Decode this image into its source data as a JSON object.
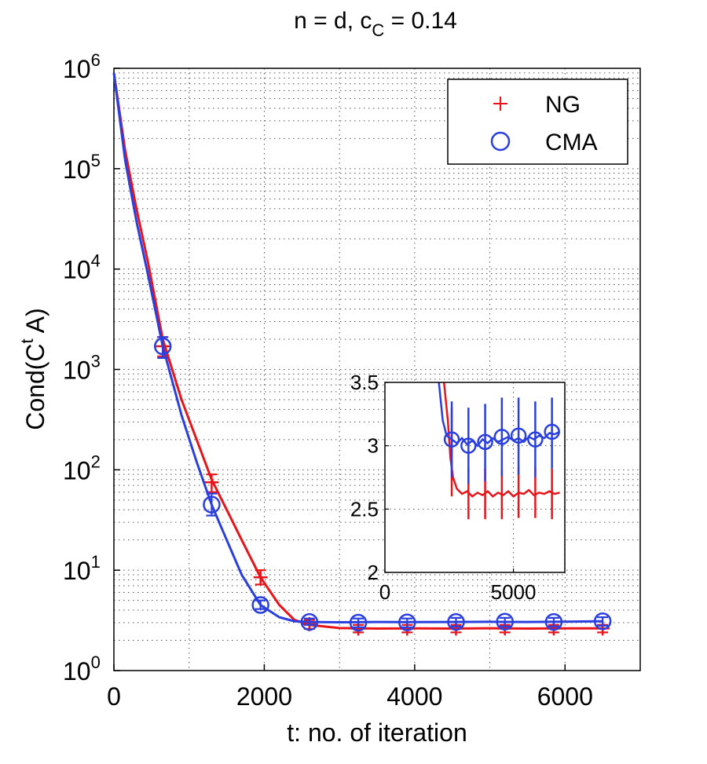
{
  "chart_data": [
    {
      "type": "line",
      "title": {
        "main": "n = d, c",
        "sub": "C",
        "tail": " = 0.14"
      },
      "xlabel": "t: no. of iteration",
      "ylabel": {
        "pre": "Cond(C",
        "sup": "t",
        "post": " A)"
      },
      "yscale": "log",
      "xlim": [
        0,
        7000
      ],
      "ylim": [
        1,
        1000000
      ],
      "xticks": [
        0,
        2000,
        4000,
        6000
      ],
      "yticks": [
        {
          "value": 1,
          "base": "10",
          "exp": "0"
        },
        {
          "value": 10,
          "base": "10",
          "exp": "1"
        },
        {
          "value": 100,
          "base": "10",
          "exp": "2"
        },
        {
          "value": 1000,
          "base": "10",
          "exp": "3"
        },
        {
          "value": 10000,
          "base": "10",
          "exp": "4"
        },
        {
          "value": 100000,
          "base": "10",
          "exp": "5"
        },
        {
          "value": 1000000,
          "base": "10",
          "exp": "6"
        }
      ],
      "grid": true,
      "legend": "top-right",
      "series": [
        {
          "name": "NG",
          "color": "#e8141a",
          "marker": "plus",
          "line": [
            [
              0,
              900000
            ],
            [
              150,
              150000
            ],
            [
              300,
              40000
            ],
            [
              450,
              12000
            ],
            [
              650,
              2000
            ],
            [
              900,
              500
            ],
            [
              1100,
              200
            ],
            [
              1300,
              80
            ],
            [
              1500,
              40
            ],
            [
              1700,
              20
            ],
            [
              1950,
              8.5
            ],
            [
              2200,
              4.5
            ],
            [
              2400,
              3.2
            ],
            [
              2600,
              2.85
            ],
            [
              3000,
              2.65
            ],
            [
              3500,
              2.62
            ],
            [
              4000,
              2.63
            ],
            [
              4500,
              2.62
            ],
            [
              5000,
              2.64
            ],
            [
              5500,
              2.62
            ],
            [
              6000,
              2.63
            ],
            [
              6500,
              2.63
            ]
          ],
          "markers": [
            {
              "x": 650,
              "y": 1700,
              "lo": 1350,
              "hi": 2100
            },
            {
              "x": 1300,
              "y": 75,
              "lo": 60,
              "hi": 90
            },
            {
              "x": 1950,
              "y": 8.5,
              "lo": 7.2,
              "hi": 10
            },
            {
              "x": 2600,
              "y": 2.9,
              "lo": 2.6,
              "hi": 3.2
            },
            {
              "x": 3250,
              "y": 2.62,
              "lo": 2.4,
              "hi": 2.85
            },
            {
              "x": 3900,
              "y": 2.62,
              "lo": 2.4,
              "hi": 2.85
            },
            {
              "x": 4550,
              "y": 2.62,
              "lo": 2.4,
              "hi": 2.85
            },
            {
              "x": 5200,
              "y": 2.63,
              "lo": 2.4,
              "hi": 2.85
            },
            {
              "x": 5850,
              "y": 2.63,
              "lo": 2.4,
              "hi": 2.85
            },
            {
              "x": 6500,
              "y": 2.63,
              "lo": 2.4,
              "hi": 2.85
            }
          ]
        },
        {
          "name": "CMA",
          "color": "#2a3fe0",
          "marker": "circle",
          "line": [
            [
              0,
              900000
            ],
            [
              150,
              120000
            ],
            [
              300,
              30000
            ],
            [
              450,
              9000
            ],
            [
              650,
              1700
            ],
            [
              900,
              350
            ],
            [
              1100,
              120
            ],
            [
              1300,
              45
            ],
            [
              1500,
              20
            ],
            [
              1700,
              9
            ],
            [
              1950,
              4.5
            ],
            [
              2200,
              3.4
            ],
            [
              2400,
              3.1
            ],
            [
              2600,
              3.05
            ],
            [
              3000,
              3.03
            ],
            [
              3500,
              3.05
            ],
            [
              4000,
              3.04
            ],
            [
              4500,
              3.05
            ],
            [
              5000,
              3.06
            ],
            [
              5500,
              3.05
            ],
            [
              6000,
              3.07
            ],
            [
              6500,
              3.1
            ]
          ],
          "markers": [
            {
              "x": 650,
              "y": 1700,
              "lo": 1300,
              "hi": 2100
            },
            {
              "x": 1300,
              "y": 45,
              "lo": 35,
              "hi": 58
            },
            {
              "x": 1950,
              "y": 4.5,
              "lo": 4.1,
              "hi": 5.0
            },
            {
              "x": 2600,
              "y": 3.05,
              "lo": 2.85,
              "hi": 3.3
            },
            {
              "x": 3250,
              "y": 3.0,
              "lo": 2.7,
              "hi": 3.3
            },
            {
              "x": 3900,
              "y": 3.02,
              "lo": 2.7,
              "hi": 3.3
            },
            {
              "x": 4550,
              "y": 3.05,
              "lo": 2.75,
              "hi": 3.35
            },
            {
              "x": 5200,
              "y": 3.07,
              "lo": 2.75,
              "hi": 3.35
            },
            {
              "x": 5850,
              "y": 3.05,
              "lo": 2.75,
              "hi": 3.35
            },
            {
              "x": 6500,
              "y": 3.1,
              "lo": 2.8,
              "hi": 3.4
            }
          ]
        }
      ]
    },
    {
      "type": "line",
      "title": "",
      "placement": "inset",
      "xlim": [
        0,
        7000
      ],
      "ylim": [
        2,
        3.5
      ],
      "xticks": [
        0,
        5000
      ],
      "yticks": [
        2,
        2.5,
        3,
        3.5
      ],
      "grid": true,
      "series": [
        {
          "name": "NG",
          "color": "#e8141a",
          "line": [
            [
              2300,
              3.5
            ],
            [
              2450,
              3.2
            ],
            [
              2550,
              2.9
            ],
            [
              2650,
              2.75
            ],
            [
              2800,
              2.66
            ],
            [
              3000,
              2.62
            ],
            [
              3200,
              2.64
            ],
            [
              3400,
              2.6
            ],
            [
              3600,
              2.63
            ],
            [
              3800,
              2.61
            ],
            [
              4000,
              2.64
            ],
            [
              4200,
              2.6
            ],
            [
              4400,
              2.63
            ],
            [
              4600,
              2.61
            ],
            [
              4800,
              2.64
            ],
            [
              5000,
              2.6
            ],
            [
              5200,
              2.63
            ],
            [
              5400,
              2.62
            ],
            [
              5600,
              2.65
            ],
            [
              5800,
              2.61
            ],
            [
              6000,
              2.63
            ],
            [
              6200,
              2.62
            ],
            [
              6400,
              2.64
            ],
            [
              6600,
              2.62
            ],
            [
              6800,
              2.63
            ]
          ],
          "markers": [
            {
              "x": 2600,
              "y": 2.95,
              "lo": 2.6,
              "hi": 3.3
            },
            {
              "x": 3250,
              "y": 2.62,
              "lo": 2.42,
              "hi": 2.82
            },
            {
              "x": 3900,
              "y": 2.62,
              "lo": 2.42,
              "hi": 2.82
            },
            {
              "x": 4550,
              "y": 2.62,
              "lo": 2.42,
              "hi": 2.82
            },
            {
              "x": 5200,
              "y": 2.63,
              "lo": 2.43,
              "hi": 2.83
            },
            {
              "x": 5850,
              "y": 2.63,
              "lo": 2.43,
              "hi": 2.83
            },
            {
              "x": 6500,
              "y": 2.62,
              "lo": 2.42,
              "hi": 2.82
            }
          ]
        },
        {
          "name": "CMA",
          "color": "#2a3fe0",
          "line": [
            [
              2100,
              3.5
            ],
            [
              2250,
              3.2
            ],
            [
              2400,
              3.08
            ],
            [
              2600,
              3.05
            ],
            [
              2800,
              3.02
            ],
            [
              3000,
              3.06
            ],
            [
              3200,
              3.01
            ],
            [
              3400,
              3.04
            ],
            [
              3600,
              3.0
            ],
            [
              3800,
              3.05
            ],
            [
              4000,
              3.02
            ],
            [
              4200,
              3.06
            ],
            [
              4400,
              3.03
            ],
            [
              4600,
              3.05
            ],
            [
              4800,
              3.07
            ],
            [
              5000,
              3.04
            ],
            [
              5200,
              3.06
            ],
            [
              5400,
              3.03
            ],
            [
              5600,
              3.07
            ],
            [
              5800,
              3.05
            ],
            [
              6000,
              3.08
            ],
            [
              6200,
              3.06
            ],
            [
              6400,
              3.1
            ],
            [
              6600,
              3.09
            ],
            [
              6800,
              3.11
            ]
          ],
          "markers": [
            {
              "x": 2600,
              "y": 3.05,
              "lo": 2.75,
              "hi": 3.35
            },
            {
              "x": 3250,
              "y": 3.0,
              "lo": 2.7,
              "hi": 3.3
            },
            {
              "x": 3900,
              "y": 3.03,
              "lo": 2.72,
              "hi": 3.33
            },
            {
              "x": 4550,
              "y": 3.07,
              "lo": 2.76,
              "hi": 3.38
            },
            {
              "x": 5200,
              "y": 3.08,
              "lo": 2.77,
              "hi": 3.38
            },
            {
              "x": 5850,
              "y": 3.05,
              "lo": 2.75,
              "hi": 3.35
            },
            {
              "x": 6500,
              "y": 3.11,
              "lo": 2.82,
              "hi": 3.38
            }
          ]
        }
      ]
    }
  ]
}
